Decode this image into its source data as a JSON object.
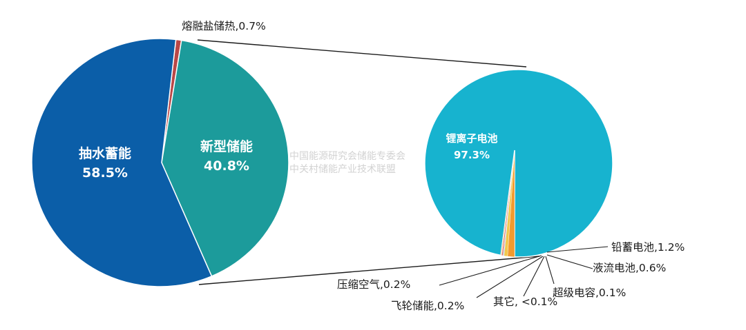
{
  "chart_data": [
    {
      "type": "pie",
      "slices": [
        {
          "label": "抽水蓄能",
          "value": 58.5,
          "value_label": "58.5%",
          "color": "#0b5ea8"
        },
        {
          "label": "新型储能",
          "value": 40.8,
          "value_label": "40.8%",
          "color": "#1c9b9b"
        },
        {
          "label": "熔融盐储热",
          "value": 0.7,
          "value_label": "熔融盐储热,0.7%",
          "color": "#b94747"
        }
      ]
    },
    {
      "type": "pie",
      "slices": [
        {
          "label": "锂离子电池",
          "value": 97.3,
          "value_label": "97.3%",
          "color": "#17b3cf"
        },
        {
          "label": "铅蓄电池",
          "value": 1.2,
          "value_label": "铅蓄电池,1.2%",
          "color": "#f29a2e"
        },
        {
          "label": "液流电池",
          "value": 0.6,
          "value_label": "液流电池,0.6%",
          "color": "#f2c84b"
        },
        {
          "label": "超级电容",
          "value": 0.1,
          "value_label": "超级电容,0.1%",
          "color": "#6fa8dc"
        },
        {
          "label": "其它",
          "value": 0.05,
          "value_label": "其它, <0.1%",
          "color": "#9e9e9e"
        },
        {
          "label": "飞轮储能",
          "value": 0.2,
          "value_label": "飞轮储能,0.2%",
          "color": "#e06666"
        },
        {
          "label": "压缩空气",
          "value": 0.2,
          "value_label": "压缩空气,0.2%",
          "color": "#f6d5a8"
        }
      ]
    }
  ],
  "watermark": {
    "line1": "中国能源研究会储能专委会",
    "line2": "中关村储能产业技术联盟"
  }
}
